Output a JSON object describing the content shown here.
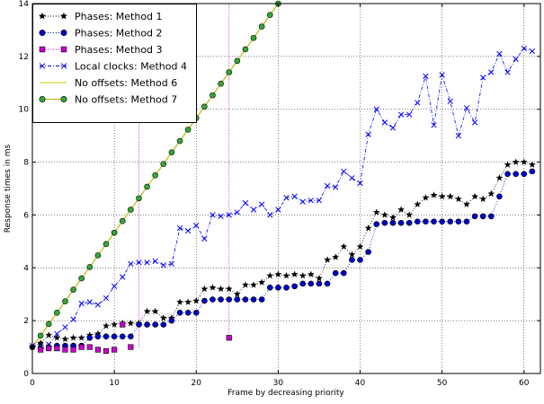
{
  "chart_data": {
    "type": "scatter",
    "xlabel": "Frame by decreasing priority",
    "ylabel": "Response times in ms",
    "xlim": [
      0,
      62
    ],
    "ylim": [
      0,
      14
    ],
    "xticks": [
      0,
      10,
      20,
      30,
      40,
      50,
      60
    ],
    "yticks": [
      0,
      2,
      4,
      6,
      8,
      10,
      12,
      14
    ],
    "grid": true,
    "legend_position": "top-left",
    "series": [
      {
        "name": "Phases: Method 1",
        "color": "#000000",
        "marker": "star",
        "line": "dotted",
        "x": [
          0,
          1,
          2,
          3,
          4,
          5,
          6,
          7,
          8,
          9,
          10,
          11,
          12,
          13,
          14,
          15,
          16,
          17,
          18,
          19,
          20,
          21,
          22,
          23,
          24,
          25,
          26,
          27,
          28,
          29,
          30,
          31,
          32,
          33,
          34,
          35,
          36,
          37,
          38,
          39,
          40,
          41,
          42,
          43,
          44,
          45,
          46,
          47,
          48,
          49,
          50,
          51,
          52,
          53,
          54,
          55,
          56,
          57,
          58,
          59,
          60,
          61
        ],
        "y": [
          1.0,
          1.15,
          1.45,
          1.35,
          1.3,
          1.35,
          1.35,
          1.45,
          1.5,
          1.8,
          1.85,
          1.9,
          1.9,
          1.9,
          2.35,
          2.35,
          2.1,
          2.1,
          2.7,
          2.7,
          2.75,
          3.2,
          3.25,
          3.2,
          3.2,
          3.0,
          3.35,
          3.35,
          3.45,
          3.7,
          3.75,
          3.7,
          3.75,
          3.7,
          3.75,
          3.6,
          4.3,
          4.4,
          4.8,
          4.5,
          4.8,
          5.5,
          6.1,
          6.0,
          5.9,
          6.2,
          6.0,
          6.4,
          6.65,
          6.75,
          6.7,
          6.7,
          6.6,
          6.4,
          6.7,
          6.6,
          6.8,
          7.4,
          7.9,
          8.0,
          8.0,
          7.9
        ]
      },
      {
        "name": "Phases: Method 2",
        "color": "#0000cc",
        "marker": "circle",
        "line": "dotted",
        "x": [
          1,
          2,
          3,
          4,
          5,
          6,
          7,
          8,
          9,
          10,
          11,
          12,
          13,
          14,
          15,
          16,
          17,
          18,
          19,
          20,
          21,
          22,
          23,
          24,
          25,
          26,
          27,
          28,
          29,
          30,
          31,
          32,
          33,
          34,
          35,
          36,
          37,
          38,
          39,
          40,
          41,
          42,
          43,
          44,
          45,
          46,
          47,
          48,
          49,
          50,
          51,
          52,
          53,
          54,
          55,
          56,
          57,
          58,
          59,
          60,
          61
        ],
        "y": [
          0.95,
          1.0,
          1.05,
          1.05,
          1.05,
          1.05,
          1.35,
          1.4,
          1.4,
          1.4,
          1.4,
          1.4,
          1.85,
          1.85,
          1.85,
          1.85,
          2.0,
          2.3,
          2.3,
          2.3,
          2.75,
          2.8,
          2.8,
          2.8,
          2.8,
          2.8,
          2.8,
          2.8,
          3.25,
          3.25,
          3.25,
          3.3,
          3.4,
          3.4,
          3.4,
          3.4,
          3.8,
          3.8,
          4.3,
          4.3,
          4.6,
          5.65,
          5.7,
          5.7,
          5.7,
          5.7,
          5.75,
          5.75,
          5.75,
          5.75,
          5.75,
          5.75,
          5.75,
          5.95,
          5.95,
          5.95,
          6.7,
          7.55,
          7.55,
          7.55,
          7.65
        ]
      },
      {
        "name": "Phases: Method 3",
        "color": "#cc00cc",
        "marker": "square",
        "line": "dotted",
        "x": [
          1,
          2,
          3,
          4,
          5,
          6,
          7,
          8,
          9,
          10,
          11,
          12,
          13,
          24
        ],
        "y": [
          0.9,
          0.95,
          0.95,
          0.9,
          0.9,
          1.0,
          1.0,
          0.9,
          0.85,
          0.9,
          1.85,
          1.0,
          10.0,
          1.35
        ]
      },
      {
        "name": "Local clocks: Method 4",
        "color": "#0000ff",
        "marker": "x",
        "line": "dashdot",
        "x": [
          0,
          1,
          2,
          3,
          4,
          5,
          6,
          7,
          8,
          9,
          10,
          11,
          12,
          13,
          14,
          15,
          16,
          17,
          18,
          19,
          20,
          21,
          22,
          23,
          24,
          25,
          26,
          27,
          28,
          29,
          30,
          31,
          32,
          33,
          34,
          35,
          36,
          37,
          38,
          39,
          40,
          41,
          42,
          43,
          44,
          45,
          46,
          47,
          48,
          49,
          50,
          51,
          52,
          53,
          54,
          55,
          56,
          57,
          58,
          59,
          60,
          61
        ],
        "y": [
          1.05,
          1.05,
          1.1,
          1.5,
          1.75,
          2.05,
          2.65,
          2.7,
          2.6,
          2.85,
          3.3,
          3.65,
          4.15,
          4.2,
          4.2,
          4.25,
          4.1,
          4.15,
          5.5,
          5.4,
          5.6,
          5.1,
          6.0,
          5.95,
          6.0,
          6.1,
          6.45,
          6.2,
          6.4,
          6.0,
          6.2,
          6.65,
          6.7,
          6.5,
          6.55,
          6.55,
          7.1,
          7.05,
          7.65,
          7.4,
          7.2,
          9.05,
          10.0,
          9.5,
          9.3,
          9.8,
          9.8,
          10.25,
          11.25,
          9.4,
          11.3,
          10.3,
          9.0,
          10.05,
          9.5,
          11.2,
          11.4,
          12.1,
          11.4,
          11.9,
          12.3,
          12.2
        ]
      },
      {
        "name": "No offsets: Method 6",
        "color": "#cccc00",
        "marker": "none",
        "line": "solid",
        "x": [
          0,
          30
        ],
        "y": [
          1.0,
          14.0
        ]
      },
      {
        "name": "No offsets: Method 7",
        "color": "#006600",
        "fill": "#33aa33",
        "marker": "circle",
        "line": "solid",
        "x": [
          0,
          1,
          2,
          3,
          4,
          5,
          6,
          7,
          8,
          9,
          10,
          11,
          12,
          13,
          14,
          15,
          16,
          17,
          18,
          19,
          20,
          21,
          22,
          23,
          24,
          25,
          26,
          27,
          28,
          29,
          30
        ],
        "y": [
          1.0,
          1.43,
          1.87,
          2.3,
          2.73,
          3.17,
          3.6,
          4.03,
          4.47,
          4.9,
          5.33,
          5.77,
          6.2,
          6.63,
          7.07,
          7.5,
          7.93,
          8.37,
          8.8,
          9.23,
          9.67,
          10.1,
          10.53,
          10.97,
          11.4,
          11.83,
          12.27,
          12.7,
          13.13,
          13.57,
          14.0
        ]
      }
    ],
    "method3_spikes": [
      {
        "x": 13,
        "y_from": 1.0,
        "y_to": 10.0
      },
      {
        "x": 24,
        "y_from": 1.35,
        "y_to": 14.0
      }
    ]
  }
}
